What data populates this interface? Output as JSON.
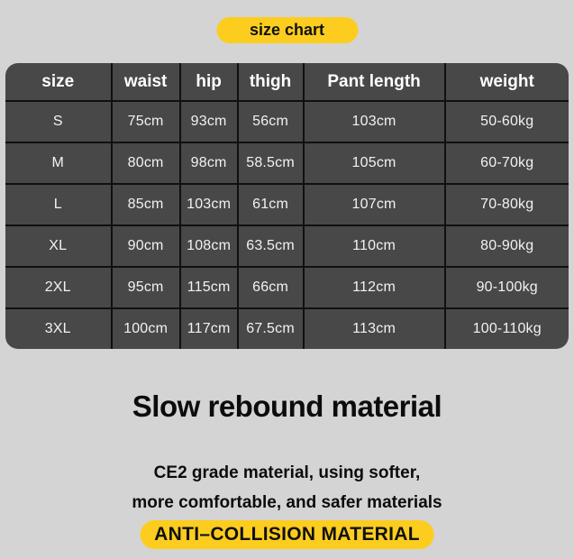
{
  "page": {
    "background_color": "#d4d4d4",
    "accent_yellow": "#fccd1e",
    "table_cell_bg": "#484848",
    "table_border_color": "#101010",
    "table_text_color": "#ffffff"
  },
  "header_badge": {
    "label": "size chart"
  },
  "chart_data": {
    "type": "table",
    "title": "size chart",
    "columns": [
      "size",
      "waist",
      "hip",
      "thigh",
      "Pant length",
      "weight"
    ],
    "rows": [
      [
        "S",
        "75cm",
        "93cm",
        "56cm",
        "103cm",
        "50-60kg"
      ],
      [
        "M",
        "80cm",
        "98cm",
        "58.5cm",
        "105cm",
        "60-70kg"
      ],
      [
        "L",
        "85cm",
        "103cm",
        "61cm",
        "107cm",
        "70-80kg"
      ],
      [
        "XL",
        "90cm",
        "108cm",
        "63.5cm",
        "110cm",
        "80-90kg"
      ],
      [
        "2XL",
        "95cm",
        "115cm",
        "66cm",
        "112cm",
        "90-100kg"
      ],
      [
        "3XL",
        "100cm",
        "117cm",
        "67.5cm",
        "113cm",
        "100-110kg"
      ]
    ]
  },
  "material": {
    "heading": "Slow rebound material",
    "desc_line1": "CE2 grade material, using softer,",
    "desc_line2": "more comfortable, and safer materials",
    "badge_label": "ANTI–COLLISION MATERIAL"
  }
}
